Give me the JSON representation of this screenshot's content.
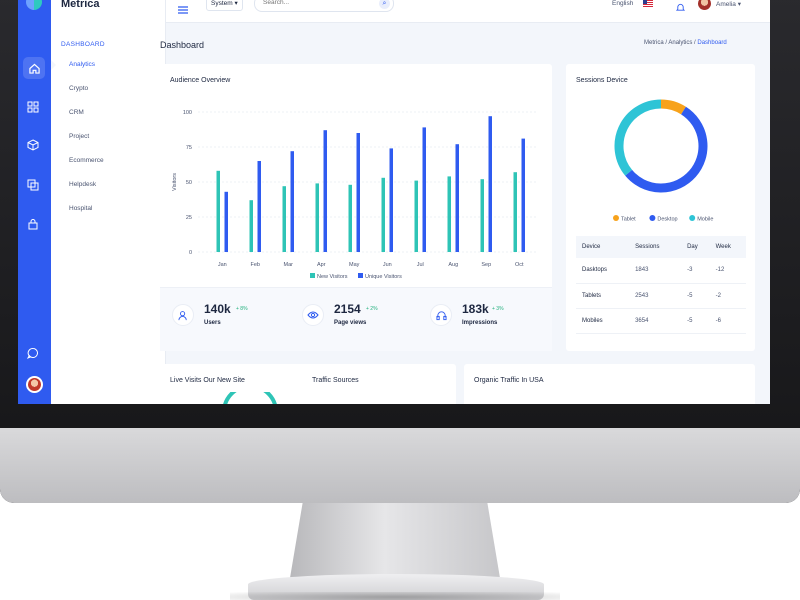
{
  "app": {
    "name": "Metrica"
  },
  "topbar": {
    "system_label": "System",
    "search_placeholder": "Search...",
    "language": "English",
    "user_name": "Amelia"
  },
  "nav": {
    "section": "DASHBOARD",
    "items": [
      {
        "label": "Analytics"
      },
      {
        "label": "Crypto"
      },
      {
        "label": "CRM"
      },
      {
        "label": "Project"
      },
      {
        "label": "Ecommerce"
      },
      {
        "label": "Helpdesk"
      },
      {
        "label": "Hospital"
      }
    ]
  },
  "page": {
    "title": "Dashboard",
    "breadcrumb": [
      "Metrica",
      "Analytics",
      "Dashboard"
    ]
  },
  "audience": {
    "title": "Audience Overview",
    "stats": [
      {
        "value": "140k",
        "change": "+ 8%",
        "label": "Users",
        "icon": "users-icon"
      },
      {
        "value": "2154",
        "change": "+ 2%",
        "label": "Page views",
        "icon": "eye-icon"
      },
      {
        "value": "183k",
        "change": "+ 3%",
        "label": "Impressions",
        "icon": "headphones-icon"
      }
    ]
  },
  "chart_data": [
    {
      "type": "bar",
      "title": "Audience Overview",
      "ylabel": "Visitors",
      "ylim": [
        0,
        100
      ],
      "yticks": [
        0,
        25,
        50,
        75,
        100
      ],
      "categories": [
        "Jan",
        "Feb",
        "Mar",
        "Apr",
        "May",
        "Jun",
        "Jul",
        "Aug",
        "Sep",
        "Oct"
      ],
      "series": [
        {
          "name": "New Visitors",
          "color": "#2ec4b6",
          "values": [
            58,
            37,
            47,
            49,
            48,
            53,
            51,
            54,
            52,
            57
          ]
        },
        {
          "name": "Unique Visitors",
          "color": "#2f5bf0",
          "values": [
            43,
            65,
            72,
            87,
            85,
            74,
            89,
            77,
            97,
            81
          ]
        }
      ],
      "legend": "bottom"
    },
    {
      "type": "pie",
      "title": "Sessions Device",
      "donut": true,
      "categories": [
        "Tablet",
        "Desktop",
        "Mobile"
      ],
      "values": [
        9,
        55,
        36
      ],
      "colors": [
        "#f7a21b",
        "#2f5bf0",
        "#2ec4d6"
      ],
      "legend": "bottom"
    }
  ],
  "sessions_table": {
    "columns": [
      "Device",
      "Sessions",
      "Day",
      "Week"
    ],
    "rows": [
      [
        "Dasktops",
        "1843",
        "-3",
        "-12"
      ],
      [
        "Tablets",
        "2543",
        "-5",
        "-2"
      ],
      [
        "Mobiles",
        "3654",
        "-5",
        "-6"
      ]
    ]
  },
  "bottom_cards": {
    "live_visits": "Live Visits Our New Site",
    "traffic_sources": "Traffic Sources",
    "organic_traffic": "Organic Traffic In USA"
  }
}
